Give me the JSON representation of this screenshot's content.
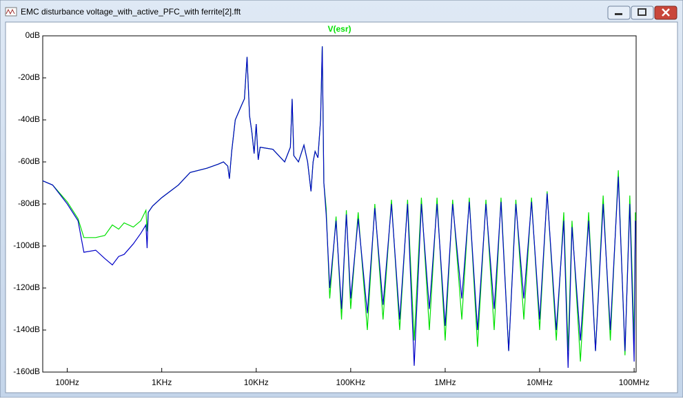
{
  "window": {
    "title": "EMC disturbance voltage_with_active_PFC_with ferrite[2].fft"
  },
  "chart_data": {
    "type": "line",
    "log_x": true,
    "x": [
      55,
      70,
      100,
      130,
      150,
      200,
      250,
      300,
      350,
      400,
      500,
      600,
      680,
      700,
      720,
      800,
      1000,
      1500,
      2000,
      3000,
      4000,
      4500,
      5000,
      5200,
      5500,
      6000,
      7000,
      7500,
      8000,
      8500,
      9000,
      9500,
      10000,
      10500,
      11000,
      15000,
      20000,
      23000,
      24000,
      25000,
      28000,
      32000,
      35000,
      38000,
      40000,
      42000,
      45000,
      48000,
      50000,
      52000,
      55000,
      60000,
      70000,
      80000,
      90000,
      100000,
      120000,
      150000,
      180000,
      220000,
      270000,
      330000,
      400000,
      470000,
      560000,
      680000,
      820000,
      1000000,
      1200000,
      1500000,
      1800000,
      2200000,
      2700000,
      3300000,
      3900000,
      4700000,
      5600000,
      6800000,
      8200000,
      10000000,
      12000000,
      15000000,
      18000000,
      20000000,
      22000000,
      27000000,
      33000000,
      39000000,
      47000000,
      56000000,
      68000000,
      80000000,
      90000000,
      100000000,
      103000000
    ],
    "series": [
      {
        "name": "V(esr)",
        "color": "#00e000",
        "values": [
          -69,
          -71,
          -79,
          -87,
          -96,
          -96,
          -95,
          -90,
          -92,
          -89,
          -91,
          -88,
          -83,
          -93,
          -84,
          -81,
          -77,
          -71,
          -65,
          -63,
          -61,
          -60,
          -62,
          -68,
          -55,
          -40,
          -33,
          -30,
          -10,
          -38,
          -46,
          -56,
          -42,
          -59,
          -53,
          -54,
          -60,
          -53,
          -30,
          -57,
          -60,
          -52,
          -60,
          -74,
          -60,
          -55,
          -58,
          -40,
          -5,
          -70,
          -82,
          -125,
          -86,
          -135,
          -83,
          -130,
          -84,
          -140,
          -80,
          -135,
          -78,
          -140,
          -78,
          -145,
          -77,
          -140,
          -77,
          -145,
          -78,
          -135,
          -77,
          -148,
          -78,
          -140,
          -77,
          -150,
          -78,
          -135,
          -77,
          -140,
          -74,
          -145,
          -84,
          -150,
          -88,
          -155,
          -84,
          -150,
          -76,
          -145,
          -64,
          -152,
          -76,
          -145,
          -84
        ]
      },
      {
        "color": "#0000c8",
        "values": [
          -69,
          -71,
          -80,
          -88,
          -103,
          -102,
          -106,
          -109,
          -105,
          -104,
          -99,
          -94,
          -90,
          -101,
          -84,
          -81,
          -77,
          -71,
          -65,
          -63,
          -61,
          -60,
          -62,
          -68,
          -55,
          -40,
          -33,
          -30,
          -10,
          -38,
          -46,
          -56,
          -42,
          -59,
          -53,
          -54,
          -60,
          -53,
          -30,
          -57,
          -60,
          -52,
          -60,
          -74,
          -60,
          -55,
          -58,
          -40,
          -5,
          -70,
          -85,
          -120,
          -88,
          -130,
          -85,
          -125,
          -87,
          -132,
          -82,
          -128,
          -80,
          -135,
          -80,
          -157,
          -80,
          -130,
          -80,
          -138,
          -80,
          -125,
          -79,
          -140,
          -80,
          -130,
          -79,
          -150,
          -80,
          -125,
          -79,
          -135,
          -75,
          -140,
          -88,
          -158,
          -91,
          -145,
          -88,
          -150,
          -80,
          -140,
          -67,
          -150,
          -80,
          -155,
          -88
        ]
      }
    ],
    "xlim": [
      55,
      105000000
    ],
    "xticks": [
      {
        "value": 100,
        "label": "100Hz"
      },
      {
        "value": 1000,
        "label": "1KHz"
      },
      {
        "value": 10000,
        "label": "10KHz"
      },
      {
        "value": 100000,
        "label": "100KHz"
      },
      {
        "value": 1000000,
        "label": "1MHz"
      },
      {
        "value": 10000000,
        "label": "10MHz"
      },
      {
        "value": 100000000,
        "label": "100MHz"
      }
    ],
    "ylim": [
      -160,
      0
    ],
    "yticks": [
      {
        "value": 0,
        "label": "0dB"
      },
      {
        "value": -20,
        "label": "-20dB"
      },
      {
        "value": -40,
        "label": "-40dB"
      },
      {
        "value": -60,
        "label": "-60dB"
      },
      {
        "value": -80,
        "label": "-80dB"
      },
      {
        "value": -100,
        "label": "-100dB"
      },
      {
        "value": -120,
        "label": "-120dB"
      },
      {
        "value": -140,
        "label": "-140dB"
      },
      {
        "value": -160,
        "label": "-160dB"
      }
    ]
  }
}
